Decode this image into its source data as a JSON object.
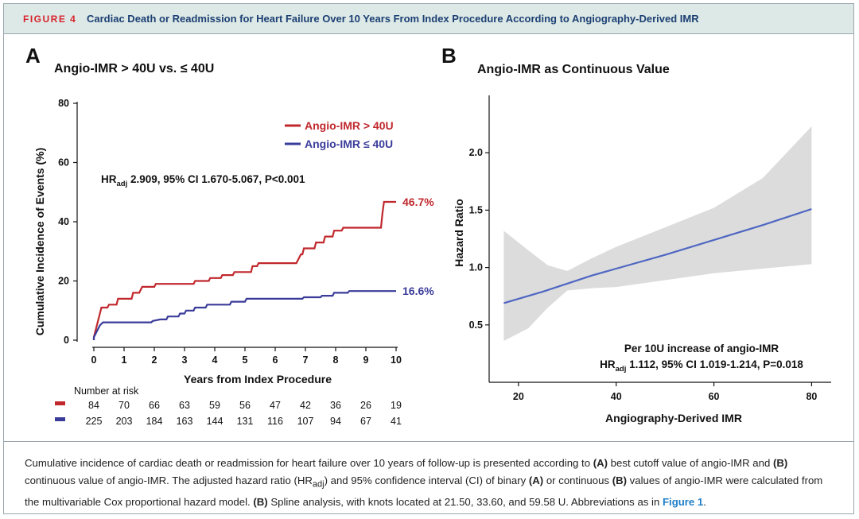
{
  "header": {
    "figure_label": "FIGURE 4",
    "title": "Cardiac Death or Readmission for Heart Failure Over 10 Years From Index Procedure According to Angiography-Derived IMR"
  },
  "panels": {
    "a_letter": "A",
    "b_letter": "B"
  },
  "colors": {
    "red": "#c0282d",
    "blue": "#3a3c9a",
    "ci_band": "#dcdcdc",
    "line_b": "#4f67c2"
  },
  "chart_data": [
    {
      "type": "line",
      "title": "Angio-IMR > 40U vs. ≤ 40U",
      "xlabel": "Years from Index Procedure",
      "ylabel": "Cumulative Incidence of Events (%)",
      "xlim": [
        0,
        10
      ],
      "ylim": [
        0,
        80
      ],
      "x_ticks": [
        0,
        1,
        2,
        3,
        4,
        5,
        6,
        7,
        8,
        9,
        10
      ],
      "y_ticks": [
        0,
        20,
        40,
        60,
        80
      ],
      "legend_position": "top-right",
      "hr_text": {
        "hr": "HR",
        "sub": "adj",
        "rest": " 2.909, 95% CI 1.670-5.067, P<0.001"
      },
      "series": [
        {
          "name": "Angio-IMR > 40U",
          "color": "#c0282d",
          "end_label": "46.7%",
          "points": [
            [
              0,
              0
            ],
            [
              0,
              1
            ],
            [
              0.05,
              3
            ],
            [
              0.1,
              5
            ],
            [
              0.15,
              7
            ],
            [
              0.2,
              9
            ],
            [
              0.25,
              11
            ],
            [
              0.45,
              11
            ],
            [
              0.5,
              12
            ],
            [
              0.75,
              12
            ],
            [
              0.8,
              14
            ],
            [
              1.25,
              14
            ],
            [
              1.3,
              16
            ],
            [
              1.5,
              16
            ],
            [
              1.6,
              18
            ],
            [
              2.0,
              18
            ],
            [
              2.05,
              19
            ],
            [
              3.3,
              19
            ],
            [
              3.35,
              20
            ],
            [
              3.8,
              20
            ],
            [
              3.85,
              21
            ],
            [
              4.2,
              21
            ],
            [
              4.25,
              22
            ],
            [
              4.6,
              22
            ],
            [
              4.65,
              23
            ],
            [
              5.2,
              23
            ],
            [
              5.25,
              25
            ],
            [
              5.4,
              25
            ],
            [
              5.45,
              26
            ],
            [
              6.7,
              26
            ],
            [
              6.75,
              27
            ],
            [
              6.8,
              28
            ],
            [
              6.85,
              29
            ],
            [
              6.9,
              29
            ],
            [
              6.95,
              31
            ],
            [
              7.3,
              31
            ],
            [
              7.35,
              33
            ],
            [
              7.6,
              33
            ],
            [
              7.65,
              35
            ],
            [
              7.9,
              35
            ],
            [
              7.95,
              37
            ],
            [
              8.2,
              37
            ],
            [
              8.25,
              38
            ],
            [
              9.5,
              38
            ],
            [
              9.55,
              43
            ],
            [
              9.6,
              46.7
            ],
            [
              10,
              46.7
            ]
          ]
        },
        {
          "name": "Angio-IMR ≤ 40U",
          "color": "#3a3c9a",
          "end_label": "16.6%",
          "points": [
            [
              0,
              0
            ],
            [
              0,
              1
            ],
            [
              0.05,
              2
            ],
            [
              0.1,
              3
            ],
            [
              0.15,
              4
            ],
            [
              0.2,
              5
            ],
            [
              0.3,
              6
            ],
            [
              1.9,
              6
            ],
            [
              1.95,
              6.5
            ],
            [
              2.2,
              7
            ],
            [
              2.4,
              7
            ],
            [
              2.45,
              8
            ],
            [
              2.8,
              8
            ],
            [
              2.85,
              9
            ],
            [
              3.0,
              9
            ],
            [
              3.05,
              10
            ],
            [
              3.3,
              10
            ],
            [
              3.35,
              11
            ],
            [
              3.7,
              11
            ],
            [
              3.75,
              12
            ],
            [
              4.5,
              12
            ],
            [
              4.55,
              13
            ],
            [
              5.0,
              13
            ],
            [
              5.05,
              14
            ],
            [
              6.9,
              14
            ],
            [
              6.95,
              14.5
            ],
            [
              7.5,
              14.5
            ],
            [
              7.55,
              15
            ],
            [
              7.9,
              15
            ],
            [
              7.95,
              16
            ],
            [
              8.4,
              16
            ],
            [
              8.45,
              16.6
            ],
            [
              10,
              16.6
            ]
          ]
        }
      ],
      "risk_table": {
        "title": "Number at risk",
        "rows": [
          {
            "color": "#c0282d",
            "values": [
              "84",
              "70",
              "66",
              "63",
              "59",
              "56",
              "47",
              "42",
              "36",
              "26",
              "19"
            ]
          },
          {
            "color": "#3a3c9a",
            "values": [
              "225",
              "203",
              "184",
              "163",
              "144",
              "131",
              "116",
              "107",
              "94",
              "67",
              "41"
            ]
          }
        ]
      }
    },
    {
      "type": "line",
      "title": "Angio-IMR as Continuous Value",
      "xlabel": "Angiography-Derived IMR",
      "ylabel": "Hazard Ratio",
      "xlim": [
        14,
        84
      ],
      "ylim": [
        0.0,
        2.5
      ],
      "x_ticks": [
        20,
        40,
        60,
        80
      ],
      "y_ticks": [
        0.5,
        1.0,
        1.5,
        2.0
      ],
      "estimate": [
        [
          17,
          0.69
        ],
        [
          25,
          0.79
        ],
        [
          30,
          0.86
        ],
        [
          35,
          0.93
        ],
        [
          40,
          0.99
        ],
        [
          50,
          1.11
        ],
        [
          60,
          1.24
        ],
        [
          70,
          1.37
        ],
        [
          80,
          1.51
        ]
      ],
      "ci_upper": [
        [
          17,
          1.32
        ],
        [
          22,
          1.15
        ],
        [
          26,
          1.02
        ],
        [
          30,
          0.97
        ],
        [
          35,
          1.08
        ],
        [
          40,
          1.18
        ],
        [
          50,
          1.35
        ],
        [
          60,
          1.52
        ],
        [
          70,
          1.78
        ],
        [
          80,
          2.23
        ]
      ],
      "ci_lower": [
        [
          17,
          0.36
        ],
        [
          22,
          0.47
        ],
        [
          26,
          0.65
        ],
        [
          30,
          0.8
        ],
        [
          35,
          0.82
        ],
        [
          40,
          0.83
        ],
        [
          50,
          0.89
        ],
        [
          60,
          0.95
        ],
        [
          70,
          0.99
        ],
        [
          80,
          1.03
        ]
      ],
      "annotation_line1": "Per 10U increase of angio-IMR",
      "annotation_hr": "HR",
      "annotation_sub": "adj",
      "annotation_rest": " 1.112, 95% CI 1.019-1.214, P=0.018"
    }
  ],
  "caption": {
    "t1": "Cumulative incidence of cardiac death or readmission for heart failure over 10 years of follow-up is presented according to ",
    "t2": "(A)",
    "t3": " best cutoff value of angio-IMR and ",
    "t4": "(B)",
    "t5": " continuous value of angio-IMR. The adjusted hazard ratio (HR",
    "t6": "adj",
    "t7": ") and 95% confidence interval (CI) of binary ",
    "t8": "(A)",
    "t9": " or continuous ",
    "t10": "(B)",
    "t11": " values of angio-IMR were calculated from the multivariable Cox proportional hazard model. ",
    "t12": "(B)",
    "t13": " Spline analysis, with knots located at 21.50, 33.60, and 59.58 U. Abbreviations as in ",
    "t14": "Figure 1",
    "t15": "."
  }
}
